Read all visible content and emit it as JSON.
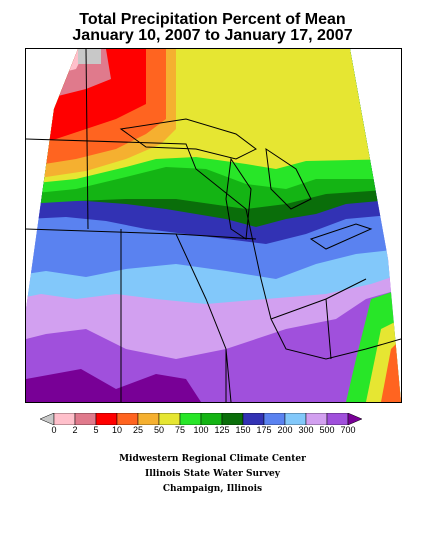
{
  "title": {
    "line1": "Total Precipitation Percent of Mean",
    "line2": "January 10, 2007 to January 17, 2007"
  },
  "legend": {
    "labels": [
      "0",
      "2",
      "5",
      "10",
      "25",
      "50",
      "75",
      "100",
      "125",
      "150",
      "175",
      "200",
      "300",
      "500",
      "700"
    ],
    "colors": [
      "#c8c8c8",
      "#ffc0cb",
      "#e07a8c",
      "#ff0000",
      "#ff6420",
      "#f5b030",
      "#e6e632",
      "#28e628",
      "#14b414",
      "#0a6e0a",
      "#3232b4",
      "#5a82f0",
      "#82c8fa",
      "#d2a0f0",
      "#a050dc",
      "#780096"
    ]
  },
  "credits": {
    "line1": "Midwestern Regional Climate Center",
    "line2": "Illinois State Water Survey",
    "line3": "Champaign, Illinois"
  }
}
